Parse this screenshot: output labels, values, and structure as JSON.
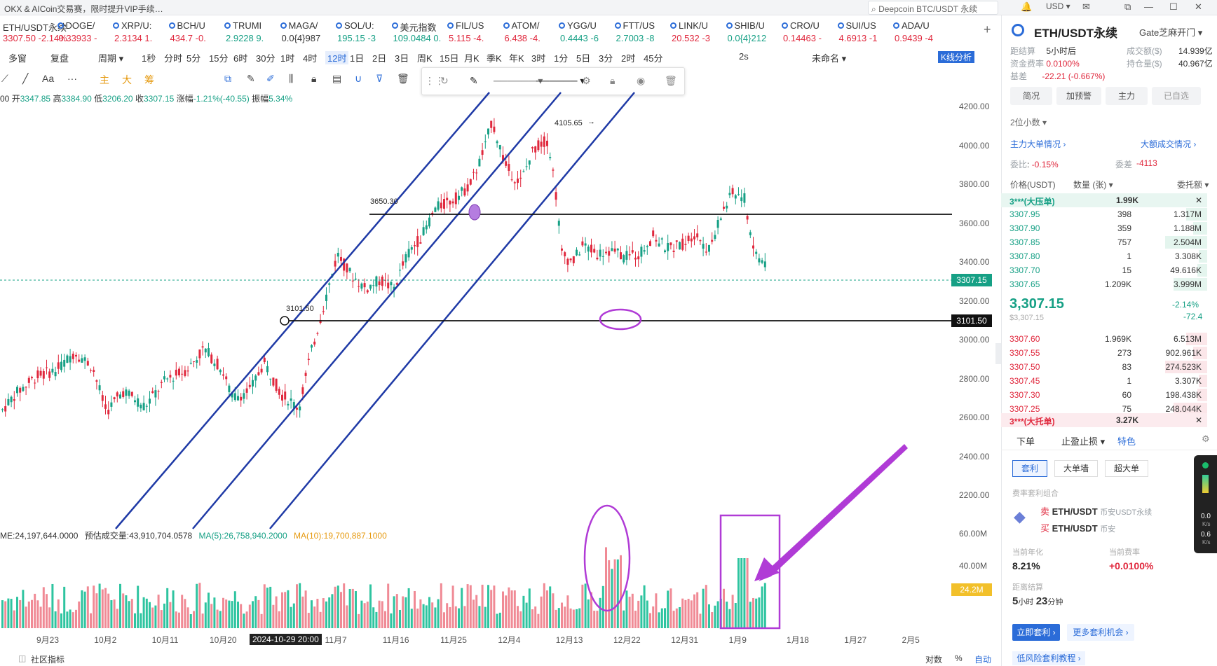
{
  "top": {
    "notice": "OKX & AICoin交易赛，限时提升VIP手续…",
    "search": "Deepcoin BTC/USDT 永续",
    "currency": "USD ▾"
  },
  "tabs": [
    {
      "name": "ETH/USDT永续",
      "price": "3307.50 -2.14%",
      "color": "red"
    },
    {
      "name": "DOGE/",
      "price": "0.33933 -",
      "color": "red"
    },
    {
      "name": "XRP/U:",
      "price": "2.3134 1.",
      "color": "red"
    },
    {
      "name": "BCH/U",
      "price": "434.7 -0.",
      "color": "red"
    },
    {
      "name": "TRUMI",
      "price": "2.9228 9.",
      "color": "green"
    },
    {
      "name": "MAGA/",
      "price": "0.0{4}987",
      "color": "black"
    },
    {
      "name": "SOL/U:",
      "price": "195.15 -3",
      "color": "green"
    },
    {
      "name": "美元指数",
      "price": "109.0484 0.",
      "color": "green"
    },
    {
      "name": "FIL/US",
      "price": "5.115 -4.",
      "color": "red"
    },
    {
      "name": "ATOM/",
      "price": "6.438 -4.",
      "color": "red"
    },
    {
      "name": "YGG/U",
      "price": "0.4443 -6",
      "color": "green"
    },
    {
      "name": "FTT/US",
      "price": "2.7003 -8",
      "color": "green"
    },
    {
      "name": "LINK/U",
      "price": "20.532 -3",
      "color": "red"
    },
    {
      "name": "SHIB/U",
      "price": "0.0{4}212",
      "color": "green"
    },
    {
      "name": "CRO/U",
      "price": "0.14463 -",
      "color": "red"
    },
    {
      "name": "SUI/US",
      "price": "4.6913 -1",
      "color": "red"
    },
    {
      "name": "ADA/U",
      "price": "0.9439 -4",
      "color": "red"
    }
  ],
  "toolbar": {
    "left": [
      "多窗",
      "复盘",
      "周期 ▾"
    ],
    "periods": [
      "1秒",
      "分时",
      "5分",
      "15分",
      "6时",
      "30分",
      "1时",
      "4时",
      "12时",
      "1日",
      "2日",
      "3日",
      "周K",
      "15日",
      "月K",
      "季K",
      "年K",
      "3时",
      "1分",
      "5日",
      "3分",
      "2时",
      "45分"
    ],
    "active_period": "12时",
    "right": [
      "2s",
      "未命名 ▾",
      "K线分析"
    ]
  },
  "draw_tools": [
    "主",
    "大",
    "筹"
  ],
  "ohlc": {
    "prefix": "00",
    "open_label": "开",
    "open": "3347.85",
    "high_label": "高",
    "high": "3384.90",
    "low_label": "低",
    "low": "3206.20",
    "close_label": "收",
    "close": "3307.15",
    "chg_label": "涨幅",
    "chg": "-1.21%(-40.55)",
    "amp_label": "振幅",
    "amp": "5.34%"
  },
  "annotations": {
    "peak": "4105.65",
    "res": "3650.30",
    "sup": "3101.50"
  },
  "price_tags": {
    "last": "3307.15",
    "sup": "3101.50",
    "vol": "24.2M"
  },
  "y_ticks": [
    "4200.00",
    "4000.00",
    "3800.00",
    "3600.00",
    "3400.00",
    "3200.00",
    "3000.00",
    "2800.00",
    "2600.00",
    "2400.00",
    "2200.00"
  ],
  "vol_ticks": [
    "60.00M",
    "40.00M"
  ],
  "x_ticks": [
    "9月23",
    "10月2",
    "10月11",
    "10月20",
    "2024-10-29 20:00",
    "11月7",
    "11月16",
    "11月25",
    "12月4",
    "12月13",
    "12月22",
    "12月31",
    "1月9",
    "1月18",
    "1月27",
    "2月5"
  ],
  "volume_info": {
    "vol": "ME:24,197,644.0000",
    "est_label": "预估成交量:",
    "est": "43,910,704.0578",
    "ma5": "MA(5):26,758,940.2000",
    "ma10": "MA(10):19,700,887.1000"
  },
  "bottom": {
    "community": "社区指标",
    "log": "对数",
    "pct": "%",
    "auto": "自动"
  },
  "panel": {
    "title": "ETH/USDT永续",
    "exchange": "Gate芝麻开门 ▾",
    "settle_label": "距结算",
    "settle": "5小时后",
    "vol_label": "成交额($)",
    "vol": "14.939亿",
    "fund_label": "资金费率",
    "fund": "0.0100%",
    "oi_label": "持仓量($)",
    "oi": "40.967亿",
    "basis_label": "基差",
    "basis": "-22.21 (-0.667%)",
    "buttons": [
      "简况",
      "加预警",
      "主力",
      "已自选"
    ],
    "decimals": "2位小数 ▾",
    "big_orders": "主力大单情况 ›",
    "big_trades": "大额成交情况 ›",
    "ratio_label": "委比",
    "ratio": "-0.15%",
    "diff_label": "委差",
    "diff": "-4113",
    "cols": [
      "价格(USDT)",
      "数量 (张) ▾",
      "委托额 ▾"
    ],
    "ask_big": {
      "label": "3***(大压单)",
      "qty": "1.99K"
    },
    "asks": [
      [
        "3307.95",
        "398",
        "1.317M"
      ],
      [
        "3307.90",
        "359",
        "1.188M"
      ],
      [
        "3307.85",
        "757",
        "2.504M"
      ],
      [
        "3307.80",
        "1",
        "3.308K"
      ],
      [
        "3307.70",
        "15",
        "49.616K"
      ],
      [
        "3307.65",
        "1.209K",
        "3.999M"
      ]
    ],
    "mid": {
      "price": "3,307.15",
      "usd": "$3,307.15",
      "pct": "-2.14%",
      "chg": "-72.4"
    },
    "bids": [
      [
        "3307.60",
        "1.969K",
        "6.513M"
      ],
      [
        "3307.55",
        "273",
        "902.961K"
      ],
      [
        "3307.50",
        "83",
        "274.523K"
      ],
      [
        "3307.45",
        "1",
        "3.307K"
      ],
      [
        "3307.30",
        "60",
        "198.438K"
      ],
      [
        "3307.25",
        "75",
        "248.044K"
      ]
    ],
    "bid_big": {
      "label": "3***(大托单)",
      "qty": "3.27K"
    },
    "order_tabs": [
      "下单",
      "止盈止损 ▾",
      "特色"
    ],
    "sub_tabs": [
      "套利",
      "大单墙",
      "超大单"
    ],
    "combo_label": "费率套利组合",
    "sell": "卖",
    "sell_pair": "ETH/USDT",
    "sell_src": "币安USDT永续",
    "buy": "买",
    "buy_pair": "ETH/USDT",
    "buy_src": "币安",
    "annual_label": "当前年化",
    "annual": "8.21%",
    "rate_label": "当前费率",
    "rate": "+0.0100%",
    "settle2_label": "距离结算",
    "settle2_h": "5",
    "settle2_hu": "小时",
    "settle2_m": "23",
    "settle2_mu": "分钟",
    "arb_btn": "立即套利 ›",
    "more_btn": "更多套利机会 ›",
    "tutorial": "低风险套利教程 ›",
    "speed": [
      "0.0",
      "K/s",
      "0.6",
      "K/s"
    ]
  },
  "colors": {
    "up": "#16a085",
    "down": "#e0283d",
    "channel": "#1f3aa6",
    "purple": "#b03bd6",
    "blue": "#2b6cd8"
  }
}
